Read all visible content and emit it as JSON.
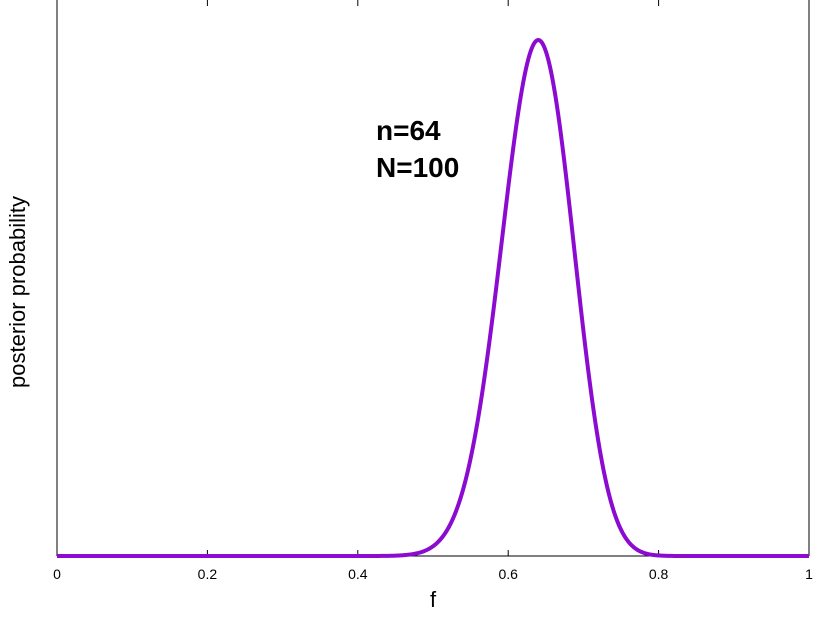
{
  "chart_data": {
    "type": "line",
    "xlabel": "f",
    "ylabel": "posterior probability",
    "xlim": [
      0,
      1
    ],
    "x_ticks": [
      "0",
      "0.2",
      "0.4",
      "0.6",
      "0.8",
      "1"
    ],
    "y_ticks_shown": false,
    "grid": false,
    "annotations": [
      "n=64",
      "N=100"
    ],
    "series": [
      {
        "color": "#8c0bd1",
        "distribution": "binomial likelihood (uniform prior)",
        "n": 64,
        "N": 100,
        "peak_x": 0.64
      }
    ]
  }
}
